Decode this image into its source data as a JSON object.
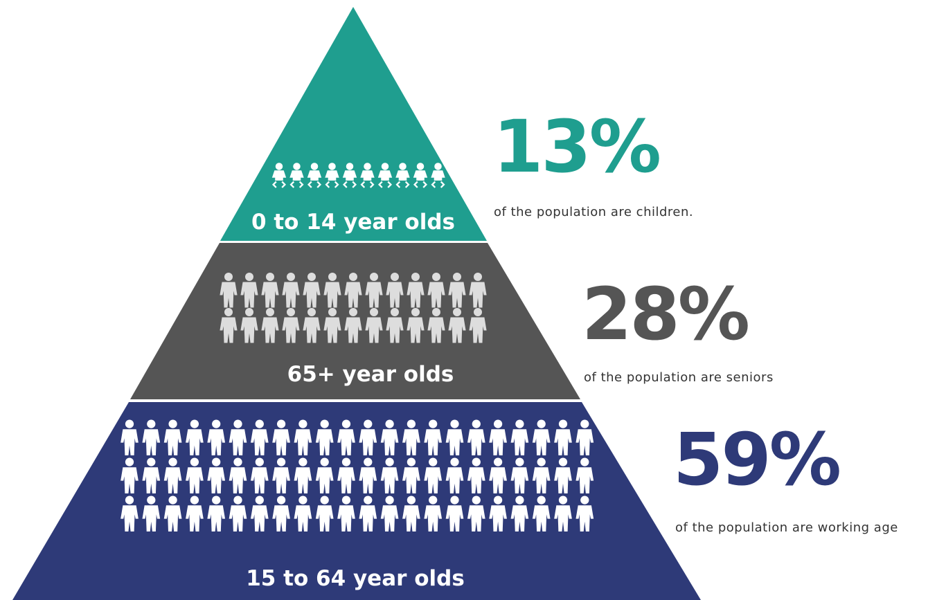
{
  "tiers": [
    {
      "label": "0 to 14 year olds",
      "percent": "13%",
      "caption": "of the population are children."
    },
    {
      "label": "65+ year olds",
      "percent": "28%",
      "caption": "of the population are seniors"
    },
    {
      "label": "15 to 64 year olds",
      "percent": "59%",
      "caption": "of the population are working age"
    }
  ]
}
